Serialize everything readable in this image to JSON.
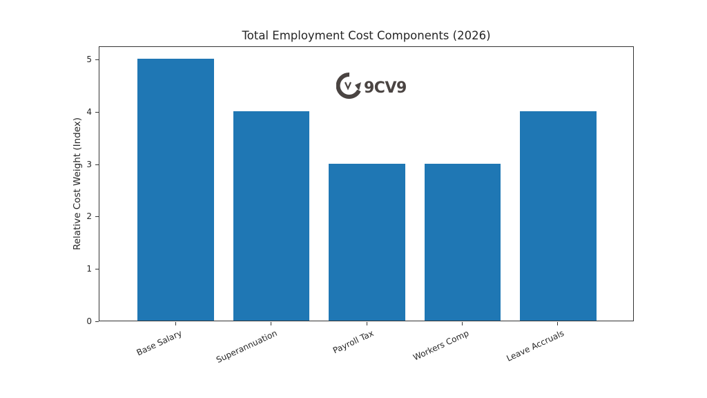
{
  "chart_data": {
    "type": "bar",
    "title": "Total Employment Cost Components (2026)",
    "xlabel": "",
    "ylabel": "Relative Cost Weight (Index)",
    "categories": [
      "Base Salary",
      "Superannuation",
      "Payroll Tax",
      "Workers Comp",
      "Leave Accruals"
    ],
    "values": [
      5,
      4,
      3,
      3,
      4
    ],
    "ylim": [
      0,
      5.25
    ],
    "yticks": [
      0,
      1,
      2,
      3,
      4,
      5
    ],
    "grid": false,
    "legend": null,
    "bar_color": "#1f77b4",
    "xtick_rotation": 25
  },
  "watermark": {
    "text": "9CV9",
    "icon": "9cv9-logo-icon",
    "color": "#4a4442"
  }
}
